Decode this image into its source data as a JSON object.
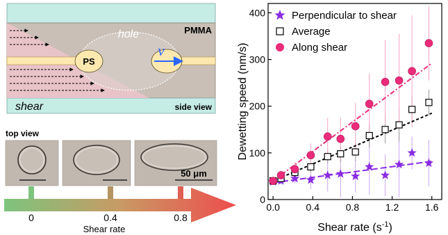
{
  "schematic": {
    "pmma_label": "PMMA",
    "hole_label": "hole",
    "ps_label": "PS",
    "velocity_label": "v",
    "shear_label": "shear",
    "side_view_label": "side view",
    "top_view_label": "top view",
    "scale_bar_label": "50 μm",
    "shear_rate_axis_label": "Shear rate",
    "shear_rate_ticks": [
      "0",
      "0.4",
      "0.8"
    ],
    "colors": {
      "film": "#fde9b0",
      "pmma": "#c9bfb6",
      "substrate": "#c6ece6",
      "shear_region": "#e8c3c8",
      "arrow_start": "#7dc47d",
      "arrow_end": "#ee4d4d"
    }
  },
  "chart_data": {
    "type": "scatter",
    "xlabel": "Shear rate (s",
    "xlabel_sup": "-1",
    "xlabel_end": ")",
    "ylabel": "Dewetting speed (nm/s)",
    "xlim": [
      -0.05,
      1.7
    ],
    "ylim": [
      0,
      420
    ],
    "xticks": [
      "0.0",
      "0.4",
      "0.8",
      "1.2",
      "1.6"
    ],
    "yticks": [
      "0",
      "100",
      "200",
      "300",
      "400"
    ],
    "legend_position": "top-left",
    "series": [
      {
        "name": "Perpendicular to shear",
        "marker": "star",
        "color": "#8a2be2",
        "x": [
          0.0,
          0.08,
          0.22,
          0.38,
          0.55,
          0.68,
          0.83,
          0.97,
          1.13,
          1.27,
          1.4,
          1.57
        ],
        "y": [
          38,
          40,
          45,
          42,
          52,
          55,
          50,
          70,
          52,
          75,
          100,
          78
        ],
        "err": [
          5,
          8,
          10,
          20,
          35,
          50,
          35,
          60,
          45,
          70,
          35,
          50
        ],
        "fit": [
          [
            0.0,
            36
          ],
          [
            1.6,
            82
          ]
        ]
      },
      {
        "name": "Average",
        "marker": "square",
        "color": "#000000",
        "x": [
          0.0,
          0.08,
          0.22,
          0.38,
          0.55,
          0.68,
          0.83,
          0.97,
          1.13,
          1.27,
          1.4,
          1.57
        ],
        "y": [
          40,
          45,
          58,
          70,
          92,
          98,
          102,
          137,
          150,
          160,
          193,
          208
        ],
        "err": [
          4,
          6,
          8,
          12,
          15,
          18,
          20,
          25,
          30,
          35,
          30,
          28
        ],
        "fit": [
          [
            0.0,
            40
          ],
          [
            1.6,
            185
          ]
        ]
      },
      {
        "name": "Along shear",
        "marker": "circle",
        "color": "#ea2c7a",
        "x": [
          0.0,
          0.08,
          0.22,
          0.38,
          0.55,
          0.68,
          0.83,
          0.97,
          1.13,
          1.27,
          1.4,
          1.57
        ],
        "y": [
          40,
          52,
          65,
          95,
          135,
          130,
          157,
          205,
          252,
          255,
          275,
          335
        ],
        "err": [
          5,
          10,
          15,
          25,
          40,
          45,
          50,
          65,
          90,
          100,
          120,
          80
        ],
        "fit": [
          [
            0.0,
            40
          ],
          [
            1.6,
            292
          ]
        ]
      }
    ]
  }
}
